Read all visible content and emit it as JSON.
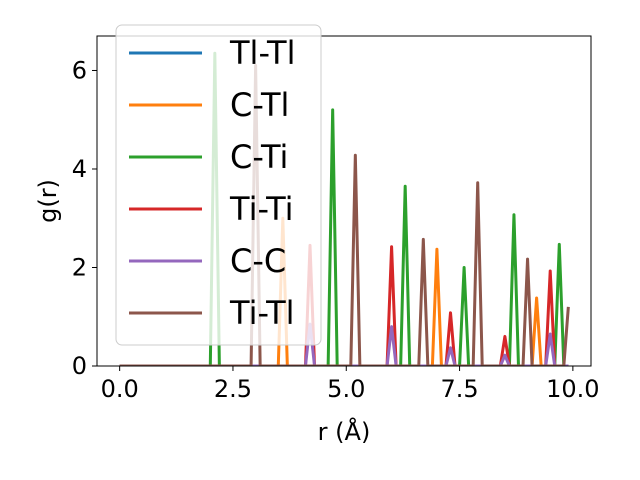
{
  "chart_data": {
    "type": "line",
    "xlabel": "r (Å)",
    "ylabel": "g(r)",
    "xlim": [
      -0.5,
      10.4
    ],
    "ylim": [
      0,
      6.7
    ],
    "xticks": [
      "0.0",
      "2.5",
      "5.0",
      "7.5",
      "10.0"
    ],
    "yticks": [
      "0",
      "2",
      "4",
      "6"
    ],
    "legend_position": "upper-left",
    "grid": false,
    "x": [
      0.0,
      2.0,
      2.1,
      2.2,
      2.9,
      3.0,
      3.1,
      3.5,
      3.6,
      3.7,
      4.1,
      4.2,
      4.3,
      4.6,
      4.7,
      4.8,
      5.1,
      5.2,
      5.3,
      5.9,
      6.0,
      6.1,
      6.2,
      6.3,
      6.4,
      6.6,
      6.7,
      6.8,
      6.9,
      7.0,
      7.1,
      7.2,
      7.3,
      7.4,
      7.5,
      7.6,
      7.7,
      7.8,
      7.9,
      8.0,
      8.4,
      8.5,
      8.6,
      8.7,
      8.8,
      8.9,
      9.0,
      9.1,
      9.2,
      9.3,
      9.4,
      9.5,
      9.6,
      9.7,
      9.8,
      9.9
    ],
    "series": [
      {
        "name": "Tl-Tl",
        "color": "#1f77b4",
        "values": [
          0,
          0,
          0,
          0,
          0,
          0,
          0,
          0,
          0,
          0,
          0,
          0,
          0,
          0,
          0,
          0,
          0,
          0,
          0,
          0,
          0,
          0,
          0,
          0,
          0,
          0,
          0,
          0,
          0,
          0,
          0,
          0,
          0,
          0,
          0,
          0,
          0,
          0,
          0,
          0,
          0,
          0,
          0,
          0,
          0,
          0,
          0,
          0,
          0,
          0,
          0,
          0,
          0,
          0,
          0,
          0
        ]
      },
      {
        "name": "C-Tl",
        "color": "#ff7f0e",
        "values": [
          0,
          0,
          0,
          0,
          0,
          0,
          0,
          0,
          3.0,
          0,
          0,
          0,
          0,
          0,
          0,
          0,
          0,
          0,
          0,
          0,
          0,
          0,
          0,
          0,
          0,
          0,
          0,
          0,
          0,
          2.37,
          0,
          0,
          0,
          0,
          0,
          0,
          0,
          0,
          0,
          0,
          0,
          0,
          0,
          0,
          0,
          0,
          0,
          0,
          1.38,
          0,
          0,
          0,
          0,
          0,
          0,
          0
        ]
      },
      {
        "name": "C-Ti",
        "color": "#2ca02c",
        "values": [
          0,
          0,
          6.35,
          0,
          0,
          0,
          0,
          0,
          0,
          0,
          0,
          0,
          0,
          0,
          5.2,
          0,
          0,
          0,
          0,
          0,
          0,
          0,
          0,
          3.65,
          0,
          0,
          0,
          0,
          0,
          0,
          0,
          0,
          0,
          0,
          0,
          2.0,
          0,
          0,
          0,
          0,
          0,
          0,
          0,
          3.07,
          0,
          0,
          0,
          0,
          0,
          0,
          0,
          0,
          0,
          2.47,
          0,
          0
        ]
      },
      {
        "name": "Ti-Ti",
        "color": "#d62728",
        "values": [
          0,
          0,
          0,
          0,
          0,
          0,
          0,
          0,
          0,
          0,
          0,
          2.45,
          0,
          0,
          0,
          0,
          0,
          0,
          0,
          0,
          2.42,
          0,
          0,
          0,
          0,
          0,
          0,
          0,
          0,
          0,
          0,
          0,
          1.08,
          0,
          0,
          0,
          0,
          0,
          0,
          0,
          0,
          0.6,
          0,
          0,
          0,
          0,
          0,
          0,
          0,
          0,
          0,
          1.93,
          0,
          0,
          0,
          0
        ]
      },
      {
        "name": "C-C",
        "color": "#9467bd",
        "values": [
          0,
          0,
          0,
          0,
          0,
          0,
          0,
          0,
          0,
          0,
          0,
          0.85,
          0,
          0,
          0,
          0,
          0,
          0,
          0,
          0,
          0.8,
          0,
          0,
          0,
          0,
          0,
          0,
          0,
          0,
          0,
          0,
          0,
          0.37,
          0,
          0,
          0,
          0,
          0,
          0,
          0,
          0,
          0.22,
          0,
          0,
          0,
          0,
          0,
          0,
          0,
          0,
          0,
          0.65,
          0,
          0,
          0,
          0
        ]
      },
      {
        "name": "Ti-Tl",
        "color": "#8c564b",
        "values": [
          0,
          0,
          0,
          0,
          0,
          6.1,
          0,
          0,
          0,
          0,
          0,
          0,
          0,
          0,
          0,
          0,
          0,
          4.28,
          0,
          0,
          0,
          0,
          0,
          0,
          0,
          0,
          2.57,
          0,
          0,
          0,
          0,
          0,
          0,
          0,
          0,
          0,
          0,
          0,
          3.72,
          0,
          0,
          0,
          0,
          0,
          0,
          0,
          2.17,
          0,
          0,
          0,
          0,
          0,
          0,
          0,
          0,
          1.2
        ]
      }
    ]
  }
}
